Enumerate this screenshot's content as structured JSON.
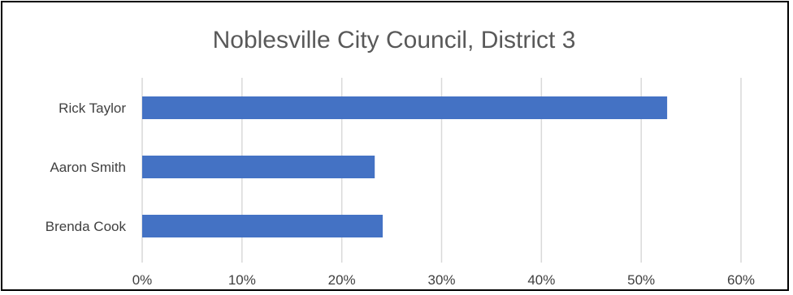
{
  "chart_data": {
    "type": "bar",
    "orientation": "horizontal",
    "title": "Noblesville City Council, District 3",
    "categories": [
      "Rick Taylor",
      "Aaron Smith",
      "Brenda Cook"
    ],
    "values": [
      0.526,
      0.233,
      0.241
    ],
    "xlim": [
      0,
      0.6
    ],
    "x_ticks": [
      0,
      0.1,
      0.2,
      0.3,
      0.4,
      0.5,
      0.6
    ],
    "x_tick_labels": [
      "0%",
      "10%",
      "20%",
      "30%",
      "40%",
      "50%",
      "60%"
    ],
    "xlabel": "",
    "ylabel": "",
    "grid": "vertical",
    "legend": "none",
    "bar_color": "#4472C4",
    "grid_color": "#D9D9D9",
    "border_color": "#000000"
  }
}
